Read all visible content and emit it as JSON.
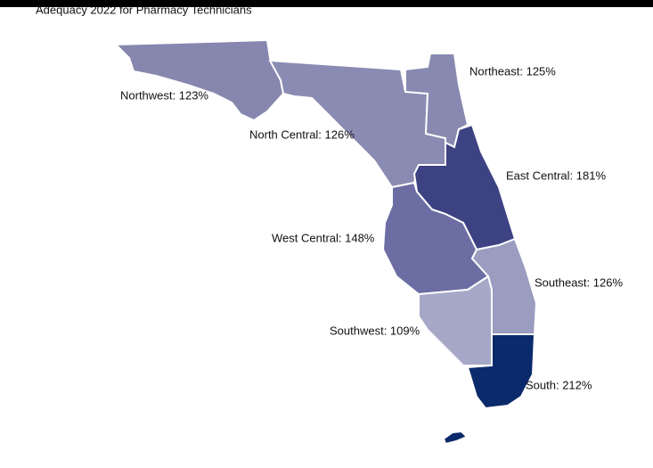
{
  "chart_data": {
    "type": "choropleth",
    "title": "Adequacy 2022 for Pharmacy Technicians",
    "regions": [
      {
        "label": "Northwest: 123%",
        "value": 123,
        "color": "#8686ae"
      },
      {
        "label": "North Central: 126%",
        "value": 126,
        "color": "#8a8bb2"
      },
      {
        "label": "Northeast: 125%",
        "value": 125,
        "color": "#8889b0"
      },
      {
        "label": "East Central: 181%",
        "value": 181,
        "color": "#3d4283"
      },
      {
        "label": "West Central: 148%",
        "value": 148,
        "color": "#6b6da3"
      },
      {
        "label": "Southeast: 126%",
        "value": 126,
        "color": "#9a9cc0"
      },
      {
        "label": "Southwest: 109%",
        "value": 109,
        "color": "#a6a8c7"
      },
      {
        "label": "South: 212%",
        "value": 212,
        "color": "#0b2a6b"
      }
    ]
  }
}
